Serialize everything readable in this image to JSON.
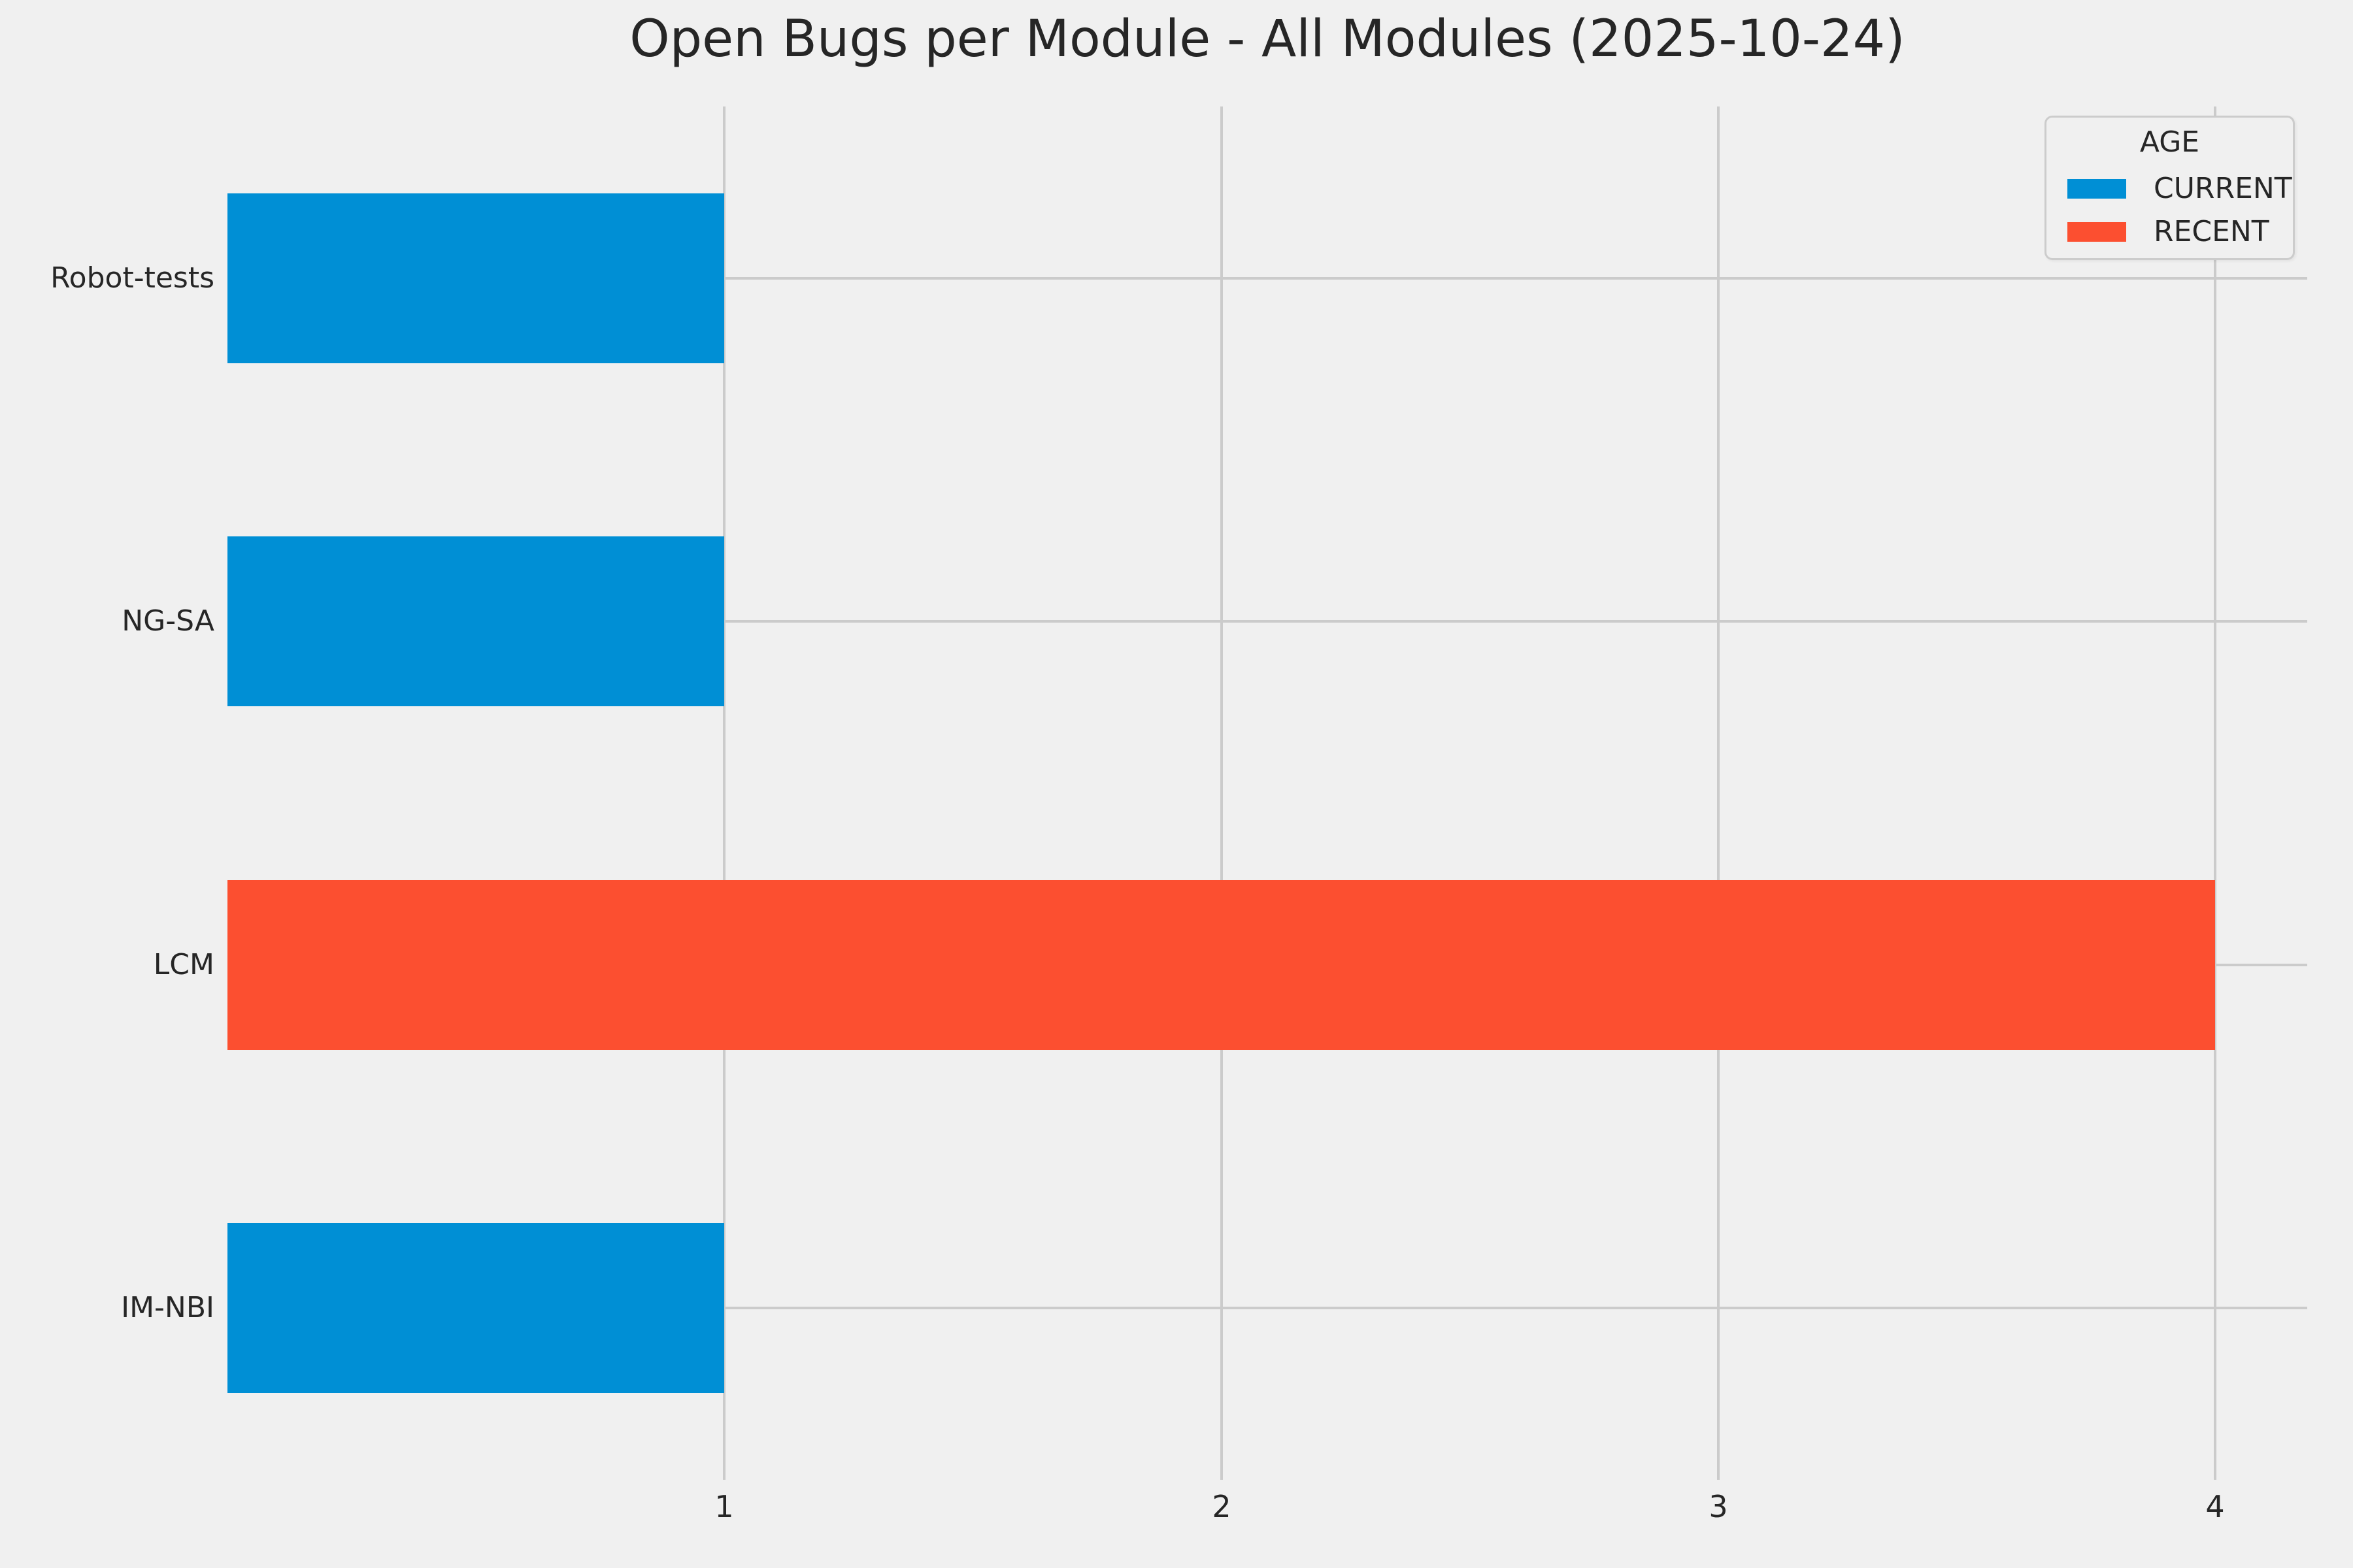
{
  "figure": {
    "background_color": "#F0F0F0",
    "grid_color": "#CBCBCB",
    "text_color": "#262626"
  },
  "chart_data": {
    "type": "bar",
    "orientation": "horizontal",
    "title": "Open Bugs per Module - All Modules (2025-10-24)",
    "xlabel": "",
    "ylabel": "",
    "categories": [
      "Robot-tests",
      "NG-SA",
      "LCM",
      "IM-NBI"
    ],
    "bars": [
      {
        "category": "Robot-tests",
        "value": 1,
        "group": "CURRENT"
      },
      {
        "category": "NG-SA",
        "value": 1,
        "group": "CURRENT"
      },
      {
        "category": "LCM",
        "value": 4,
        "group": "RECENT"
      },
      {
        "category": "IM-NBI",
        "value": 1,
        "group": "CURRENT"
      }
    ],
    "x_ticks": [
      1,
      2,
      3,
      4
    ],
    "xlim": [
      0,
      4.185
    ],
    "grid": true,
    "legend": {
      "title": "AGE",
      "position": "upper right",
      "entries": [
        {
          "label": "CURRENT",
          "color": "#008FD5"
        },
        {
          "label": "RECENT",
          "color": "#FC4F30"
        }
      ]
    }
  }
}
